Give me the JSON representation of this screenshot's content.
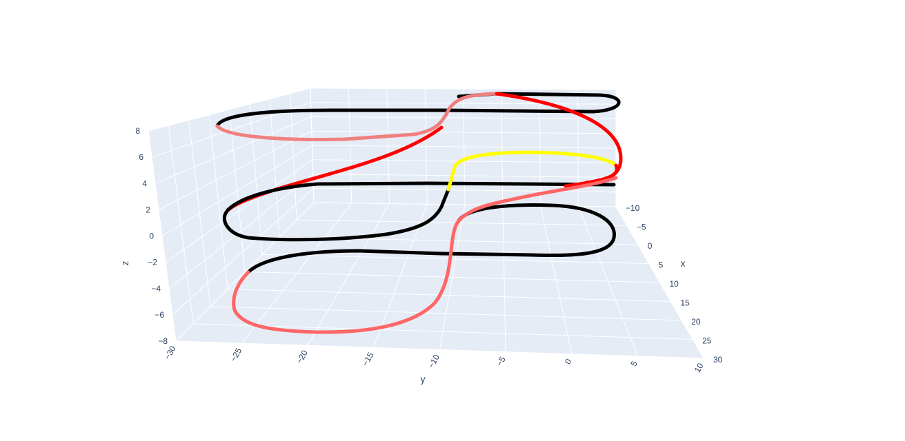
{
  "chart_data": {
    "type": "line3d",
    "background_color": "#e5ecf6",
    "grid_color": "#ffffff",
    "axes": {
      "x": {
        "title": "x",
        "range": [
          -10,
          30
        ],
        "ticks": [
          "−10",
          "−5",
          "0",
          "5",
          "10",
          "15",
          "20",
          "25",
          "30"
        ]
      },
      "y": {
        "title": "y",
        "range": [
          -30,
          10
        ],
        "ticks": [
          "−30",
          "−25",
          "−20",
          "−15",
          "−10",
          "−5",
          "0",
          "5",
          "10"
        ]
      },
      "z": {
        "title": "z",
        "range": [
          -8,
          8
        ],
        "ticks": [
          "−8",
          "−6",
          "−4",
          "−2",
          "0",
          "2",
          "4",
          "6",
          "8"
        ]
      }
    },
    "legend": "none",
    "track": {
      "description_colors": [
        "#000000",
        "#ff0000",
        "#f08080",
        "#ff6666",
        "#ffff00"
      ],
      "levels_z": [
        6.5,
        0,
        -6
      ]
    }
  }
}
